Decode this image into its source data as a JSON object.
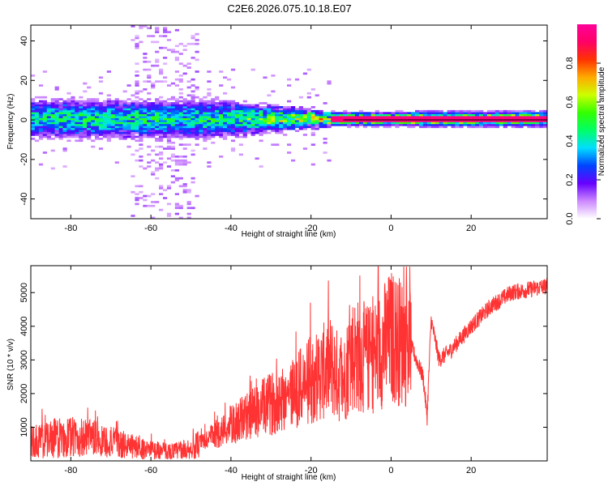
{
  "title": "C2E6.2026.075.10.18.E07",
  "colors": {
    "signal": "#ff3333",
    "axis": "#000000",
    "bg": "#ffffff"
  },
  "chart_data": [
    {
      "type": "heatmap",
      "title": "C2E6.2026.075.10.18.E07",
      "xlabel": "Height of straight line (km)",
      "ylabel": "Frequency (Hz)",
      "xlim": [
        -90,
        39
      ],
      "ylim": [
        -50,
        48
      ],
      "xticks": [
        -80,
        -60,
        -40,
        -20,
        0,
        20
      ],
      "yticks": [
        -40,
        -20,
        0,
        20,
        40
      ],
      "reference_line_hz": 0,
      "description": "Spectral amplitude concentrated near 0 Hz; broad noisy spread (about -10 to 10 Hz) for heights below -45 km, narrowing to a sharp strong line near 0 Hz above -15 km; scattered faint amplitude between -65 and -50 km over all frequencies."
    },
    {
      "type": "colorbar",
      "label": "Normalized spectral amplitude",
      "range": [
        0,
        1
      ],
      "ticks": [
        "0.0",
        "0.2",
        "0.4",
        "0.6",
        "0.8"
      ],
      "colormap": [
        "#ffffff",
        "#cc88ff",
        "#6600ff",
        "#0044ff",
        "#00ddff",
        "#00ff66",
        "#33ff00",
        "#ccff00",
        "#ffaa00",
        "#ff3300",
        "#ff0066",
        "#ff0099"
      ]
    },
    {
      "type": "line",
      "xlabel": "Height of straight line (km)",
      "ylabel": "SNR (10 * v/v)",
      "xlim": [
        -90,
        39
      ],
      "ylim": [
        0,
        5800
      ],
      "xticks": [
        -80,
        -60,
        -40,
        -20,
        0,
        20
      ],
      "yticks": [
        1000,
        2000,
        3000,
        4000,
        5000
      ],
      "series": [
        {
          "name": "SNR",
          "color": "#ff3333",
          "x": [
            -90,
            -85,
            -80,
            -75,
            -70,
            -65,
            -60,
            -55,
            -50,
            -45,
            -40,
            -35,
            -30,
            -25,
            -20,
            -15,
            -12,
            -10,
            -5,
            0,
            5,
            8,
            9,
            10,
            12,
            15,
            20,
            25,
            30,
            35,
            39
          ],
          "y": [
            550,
            650,
            700,
            650,
            550,
            420,
            320,
            280,
            350,
            700,
            1050,
            1400,
            1700,
            2000,
            2400,
            2800,
            2300,
            3200,
            3000,
            3700,
            3400,
            2500,
            1300,
            4200,
            3000,
            3300,
            4000,
            4600,
            5000,
            5100,
            5200
          ]
        }
      ]
    }
  ]
}
